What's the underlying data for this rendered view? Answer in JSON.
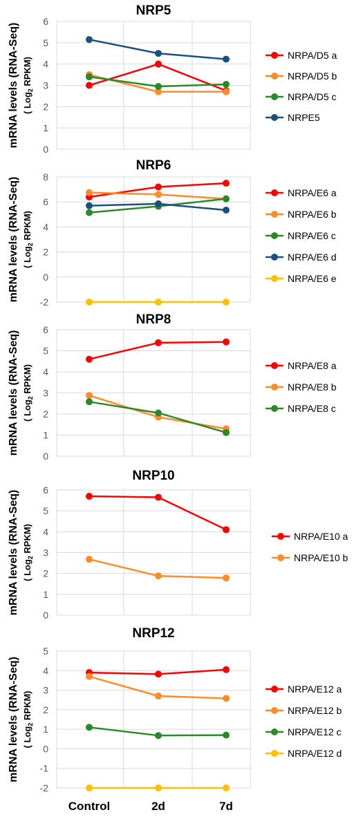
{
  "ylabel_line1": "mRNA levels (RNA-Seq)",
  "ylabel_line2_pre": "( Log",
  "ylabel_line2_sub": "2",
  "ylabel_line2_post": " RPKM)",
  "chart_data": [
    {
      "type": "line",
      "title": "NRP5",
      "categories": [
        "Control",
        "2d",
        "7d"
      ],
      "ylim": [
        0,
        6
      ],
      "yticks": [
        0,
        1,
        2,
        3,
        4,
        5,
        6
      ],
      "grid": true,
      "legend_position": "right",
      "series": [
        {
          "name": "NRPA/D5 a",
          "color": "#ff0000",
          "values": [
            3.0,
            4.0,
            2.75
          ]
        },
        {
          "name": "NRPA/D5 b",
          "color": "#ff8c28",
          "values": [
            3.5,
            2.7,
            2.7
          ]
        },
        {
          "name": "NRPA/D5 c",
          "color": "#2a8a2a",
          "values": [
            3.4,
            2.95,
            3.05
          ]
        },
        {
          "name": "NRPE5",
          "color": "#1a4f7f",
          "values": [
            5.15,
            4.5,
            4.23
          ]
        }
      ]
    },
    {
      "type": "line",
      "title": "NRP6",
      "categories": [
        "Control",
        "2d",
        "7d"
      ],
      "ylim": [
        -2,
        8
      ],
      "yticks": [
        -2,
        0,
        2,
        4,
        6,
        8
      ],
      "grid": true,
      "legend_position": "right",
      "series": [
        {
          "name": "NRPA/E6 a",
          "color": "#ff0000",
          "values": [
            6.4,
            7.2,
            7.5
          ]
        },
        {
          "name": "NRPA/E6 b",
          "color": "#ff8c28",
          "values": [
            6.75,
            6.6,
            6.25
          ]
        },
        {
          "name": "NRPA/E6 c",
          "color": "#2a8a2a",
          "values": [
            5.15,
            5.65,
            6.25
          ]
        },
        {
          "name": "NRPA/E6 d",
          "color": "#1a4f7f",
          "values": [
            5.7,
            5.85,
            5.35
          ]
        },
        {
          "name": "NRPA/E6 e",
          "color": "#ffc000",
          "values": [
            -2.0,
            -2.0,
            -2.0
          ]
        }
      ]
    },
    {
      "type": "line",
      "title": "NRP8",
      "categories": [
        "Control",
        "2d",
        "7d"
      ],
      "ylim": [
        0,
        6
      ],
      "yticks": [
        0,
        1,
        2,
        3,
        4,
        5,
        6
      ],
      "grid": true,
      "legend_position": "right",
      "series": [
        {
          "name": "NRPA/E8 a",
          "color": "#ff0000",
          "values": [
            4.6,
            5.38,
            5.42
          ]
        },
        {
          "name": "NRPA/E8 b",
          "color": "#ff8c28",
          "values": [
            2.88,
            1.85,
            1.3
          ]
        },
        {
          "name": "NRPA/E8 c",
          "color": "#2a8a2a",
          "values": [
            2.58,
            2.05,
            1.12
          ]
        }
      ]
    },
    {
      "type": "line",
      "title": "NRP10",
      "categories": [
        "Control",
        "2d",
        "7d"
      ],
      "ylim": [
        0,
        6
      ],
      "yticks": [
        0,
        1,
        2,
        3,
        4,
        5,
        6
      ],
      "grid": true,
      "legend_position": "right",
      "series": [
        {
          "name": "NRPA/E10 a",
          "color": "#ff0000",
          "values": [
            5.7,
            5.65,
            4.1
          ]
        },
        {
          "name": "NRPA/E10 b",
          "color": "#ff8c28",
          "values": [
            2.68,
            1.88,
            1.78
          ]
        }
      ]
    },
    {
      "type": "line",
      "title": "NRP12",
      "categories": [
        "Control",
        "2d",
        "7d"
      ],
      "ylim": [
        -2,
        5
      ],
      "yticks": [
        -2,
        -1,
        0,
        1,
        2,
        3,
        4,
        5
      ],
      "grid": true,
      "legend_position": "right",
      "series": [
        {
          "name": "NRPA/E12 a",
          "color": "#ff0000",
          "values": [
            3.9,
            3.82,
            4.05
          ]
        },
        {
          "name": "NRPA/E12 b",
          "color": "#ff8c28",
          "values": [
            3.7,
            2.7,
            2.58
          ]
        },
        {
          "name": "NRPA/E12 c",
          "color": "#2a8a2a",
          "values": [
            1.1,
            0.68,
            0.7
          ]
        },
        {
          "name": "NRPA/E12 d",
          "color": "#ffc000",
          "values": [
            -2.0,
            -2.0,
            -2.0
          ]
        }
      ]
    }
  ]
}
